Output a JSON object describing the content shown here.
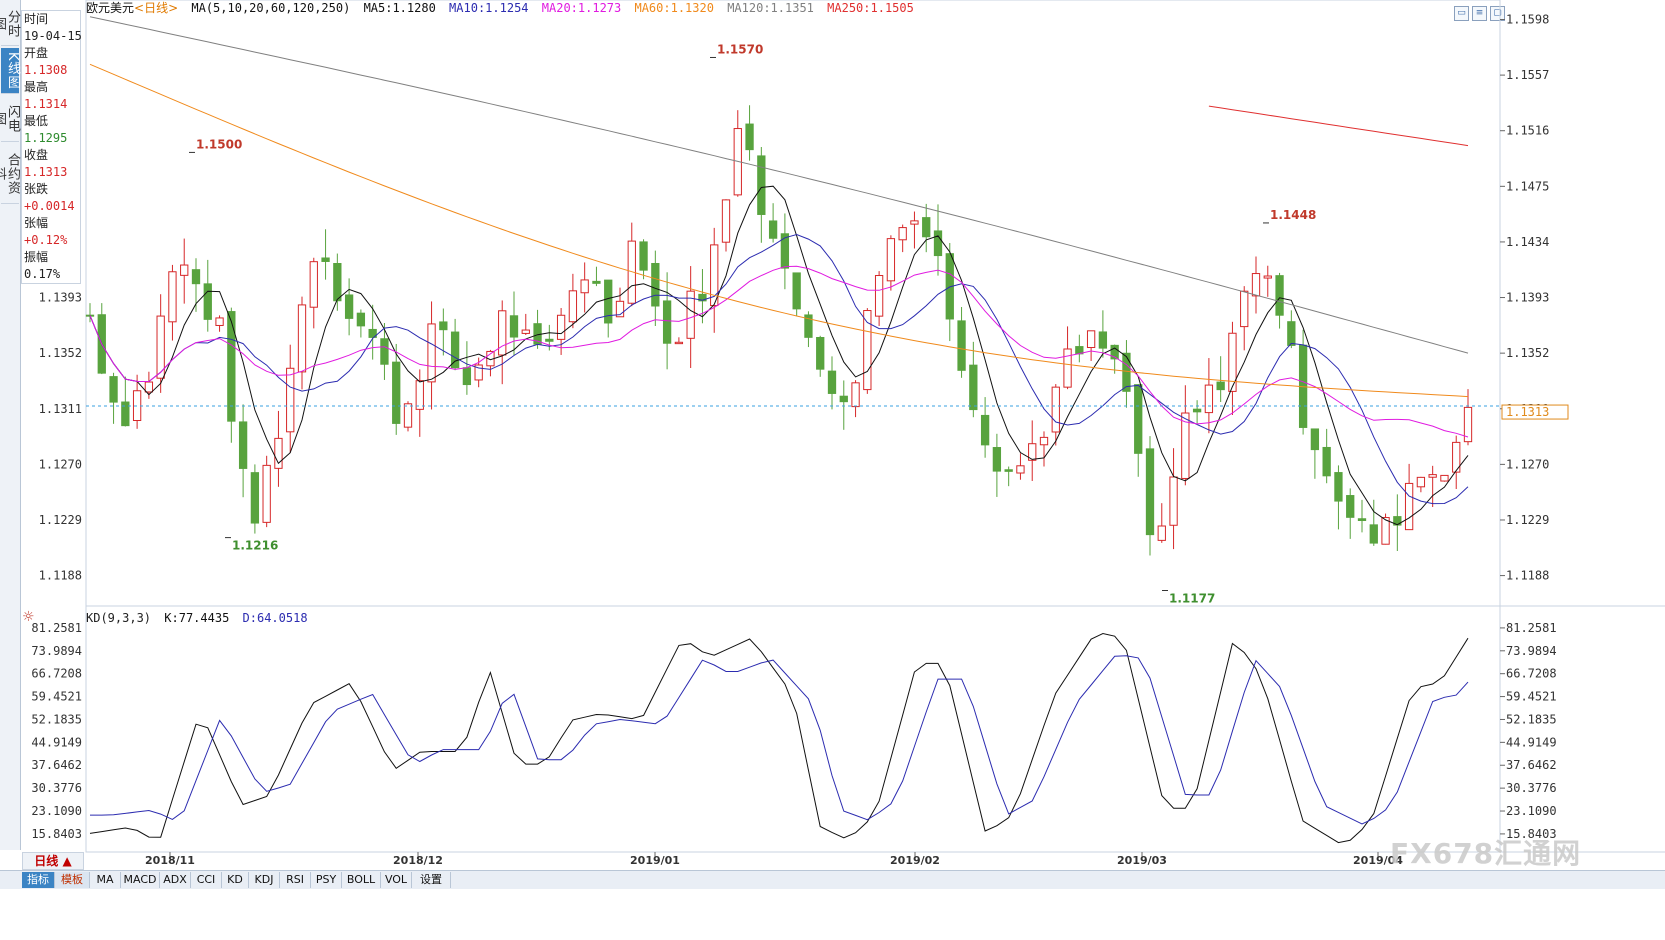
{
  "tabs_left": [
    {
      "label": "分时图",
      "active": false
    },
    {
      "label": "K线图",
      "active": true
    },
    {
      "label": "闪电图",
      "active": false
    },
    {
      "label": "合约资料",
      "active": false
    }
  ],
  "info": {
    "time_label": "时间",
    "time": "19-04-15",
    "open_label": "开盘",
    "open": "1.1308",
    "high_label": "最高",
    "high": "1.1314",
    "low_label": "最低",
    "low": "1.1295",
    "close_label": "收盘",
    "close": "1.1313",
    "change_label": "张跌",
    "change": "+0.0014",
    "pct_label": "张幅",
    "pct": "+0.12%",
    "amp_label": "振幅",
    "amp": "0.17%"
  },
  "title": {
    "symbol": "欧元美元",
    "period": "<日线>",
    "ma_label": "MA(5,10,20,60,120,250)",
    "ma5": "MA5:1.1280",
    "ma10": "MA10:1.1254",
    "ma20": "MA20:1.1273",
    "ma60": "MA60:1.1320",
    "ma120": "MA120:1.1351",
    "ma250": "MA250:1.1505"
  },
  "colors": {
    "up": "#d62728",
    "down": "#58a33e",
    "ma5": "#111111",
    "ma10": "#2c2cb0",
    "ma20": "#e01be0",
    "ma60": "#f08a1c",
    "ma120": "#808080",
    "ma250": "#e03030"
  },
  "price_axis": [
    "1.1598",
    "1.1557",
    "1.1516",
    "1.1475",
    "1.1434",
    "1.1393",
    "1.1352",
    "1.1311",
    "1.1270",
    "1.1229",
    "1.1188"
  ],
  "left_price_axis": [
    "1.1393",
    "1.1352",
    "1.1311",
    "1.1270",
    "1.1229",
    "1.1188"
  ],
  "current_price": "1.1313",
  "annotations": [
    {
      "text": "1.1500",
      "type": "high"
    },
    {
      "text": "1.1216",
      "type": "low"
    },
    {
      "text": "1.1570",
      "type": "high"
    },
    {
      "text": "1.1448",
      "type": "high"
    },
    {
      "text": "1.1177",
      "type": "low"
    }
  ],
  "dates": [
    "2018/11",
    "2018/12",
    "2019/01",
    "2019/02",
    "2019/03",
    "2019/04"
  ],
  "kd": {
    "label": "KD(9,3,3)",
    "k": "K:77.4435",
    "d": "D:64.0518",
    "axis": [
      "81.2581",
      "73.9894",
      "66.7208",
      "59.4521",
      "52.1835",
      "44.9149",
      "37.6462",
      "30.3776",
      "23.1090",
      "15.8403"
    ]
  },
  "bottom": {
    "period": "日线 ▲",
    "tabs": [
      "指标",
      "模板",
      "MA",
      "MACD",
      "ADX",
      "CCI",
      "KD",
      "KDJ",
      "RSI",
      "PSY",
      "BOLL",
      "VOL",
      "设置"
    ]
  },
  "watermark": "FX678汇通网",
  "chart_data": {
    "type": "candlestick",
    "title": "欧元美元<日线>",
    "ylim": [
      1.117,
      1.1605
    ],
    "annotations_values": {
      "high1": 1.15,
      "low1": 1.1216,
      "high2": 1.157,
      "high3": 1.1448,
      "low2": 1.1177
    },
    "last": {
      "date": "19-04-15",
      "open": 1.1308,
      "high": 1.1314,
      "low": 1.1295,
      "close": 1.1313
    },
    "series": [
      {
        "name": "KD(9,3,3)",
        "k": 77.4435,
        "d": 64.0518
      }
    ]
  }
}
